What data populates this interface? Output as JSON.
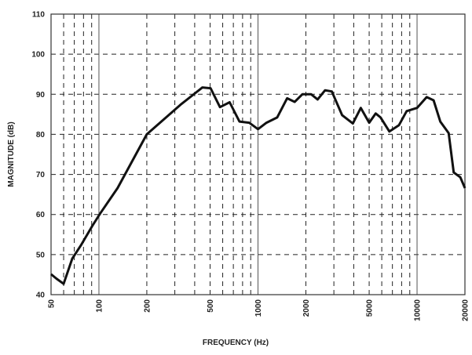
{
  "chart_data": {
    "type": "line",
    "x_label": "FREQUENCY (Hz)",
    "y_label": "MAGNITUDE (dB)",
    "x": [
      50,
      54,
      60,
      68,
      77,
      91,
      102,
      131,
      200,
      326,
      447,
      503,
      577,
      663,
      765,
      880,
      1000,
      1130,
      1320,
      1525,
      1700,
      1900,
      2160,
      2370,
      2640,
      2910,
      3380,
      3950,
      4430,
      5000,
      5500,
      5900,
      6700,
      7700,
      8600,
      10000,
      11500,
      12700,
      14000,
      15800,
      17000,
      18700,
      20000
    ],
    "series": [
      {
        "name": "Magnitude",
        "color": "#111111",
        "values": [
          45.1,
          44,
          42.7,
          49,
          52.3,
          57.2,
          60.3,
          66.6,
          80,
          87.4,
          91.7,
          91.5,
          86.8,
          88,
          83.2,
          82.9,
          81.3,
          82.9,
          84.2,
          89,
          88.1,
          90,
          90,
          88.7,
          91,
          90.7,
          84.8,
          82.7,
          86.6,
          82.9,
          85.2,
          84.2,
          80.7,
          82.3,
          85.8,
          86.6,
          89.3,
          88.5,
          83.2,
          80.3,
          70.5,
          69.3,
          66.6
        ]
      }
    ],
    "xscale": "log",
    "xlim": [
      50,
      20000
    ],
    "ylim": [
      40,
      110
    ],
    "xticks": [
      50,
      100,
      200,
      500,
      1000,
      2000,
      5000,
      10000,
      20000
    ],
    "xminorticks": [
      60,
      70,
      80,
      90,
      300,
      400,
      600,
      700,
      800,
      900,
      3000,
      4000,
      6000,
      7000,
      8000,
      9000
    ],
    "yticks": [
      40,
      50,
      60,
      70,
      80,
      90,
      100,
      110
    ],
    "grid": true
  }
}
